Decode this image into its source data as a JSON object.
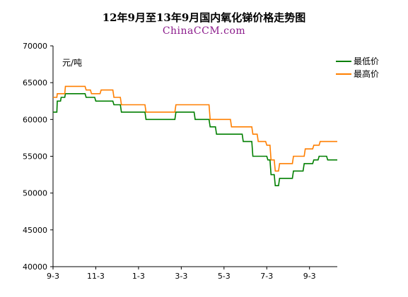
{
  "chart_data": {
    "type": "line",
    "title": "12年9月至13年9月国内氧化锑价格走势图",
    "subtitle": "ChinaCCM.com",
    "unit_label": "元/吨",
    "ylim": [
      40000,
      70000
    ],
    "y_ticks": [
      40000,
      45000,
      50000,
      55000,
      60000,
      65000,
      70000
    ],
    "x_tick_labels": [
      "9-3",
      "11-3",
      "1-3",
      "3-3",
      "5-3",
      "7-3",
      "9-3"
    ],
    "x_tick_positions": [
      0,
      2,
      4,
      6,
      8,
      10,
      12
    ],
    "xlim": [
      0,
      13.3
    ],
    "grid": false,
    "legend_position": "top-right",
    "series": [
      {
        "name": "最低价",
        "color": "#007f00",
        "points": [
          [
            0.0,
            61000
          ],
          [
            0.18,
            61000
          ],
          [
            0.2,
            62500
          ],
          [
            0.35,
            62500
          ],
          [
            0.38,
            63000
          ],
          [
            0.55,
            63000
          ],
          [
            0.58,
            63500
          ],
          [
            1.5,
            63500
          ],
          [
            1.55,
            63000
          ],
          [
            1.95,
            63000
          ],
          [
            2.0,
            62500
          ],
          [
            2.8,
            62500
          ],
          [
            2.85,
            62000
          ],
          [
            3.15,
            62000
          ],
          [
            3.2,
            61000
          ],
          [
            4.3,
            61000
          ],
          [
            4.35,
            60000
          ],
          [
            5.7,
            60000
          ],
          [
            5.75,
            61000
          ],
          [
            6.6,
            61000
          ],
          [
            6.65,
            60000
          ],
          [
            7.3,
            60000
          ],
          [
            7.35,
            59000
          ],
          [
            7.6,
            59000
          ],
          [
            7.65,
            58000
          ],
          [
            8.85,
            58000
          ],
          [
            8.9,
            57000
          ],
          [
            9.3,
            57000
          ],
          [
            9.35,
            55000
          ],
          [
            10.0,
            55000
          ],
          [
            10.05,
            54500
          ],
          [
            10.15,
            54500
          ],
          [
            10.2,
            52500
          ],
          [
            10.35,
            52500
          ],
          [
            10.4,
            51000
          ],
          [
            10.55,
            51000
          ],
          [
            10.6,
            52000
          ],
          [
            11.2,
            52000
          ],
          [
            11.25,
            53000
          ],
          [
            11.7,
            53000
          ],
          [
            11.75,
            54000
          ],
          [
            12.15,
            54000
          ],
          [
            12.2,
            54500
          ],
          [
            12.4,
            54500
          ],
          [
            12.45,
            55000
          ],
          [
            12.8,
            55000
          ],
          [
            12.85,
            54500
          ],
          [
            13.3,
            54500
          ]
        ]
      },
      {
        "name": "最高价",
        "color": "#ff7f00",
        "points": [
          [
            0.0,
            63000
          ],
          [
            0.18,
            63000
          ],
          [
            0.2,
            63500
          ],
          [
            0.55,
            63500
          ],
          [
            0.58,
            64500
          ],
          [
            1.5,
            64500
          ],
          [
            1.55,
            64000
          ],
          [
            1.75,
            64000
          ],
          [
            1.8,
            63500
          ],
          [
            2.2,
            63500
          ],
          [
            2.25,
            64000
          ],
          [
            2.8,
            64000
          ],
          [
            2.85,
            63000
          ],
          [
            3.15,
            63000
          ],
          [
            3.2,
            62000
          ],
          [
            4.3,
            62000
          ],
          [
            4.35,
            61000
          ],
          [
            5.7,
            61000
          ],
          [
            5.75,
            62000
          ],
          [
            7.3,
            62000
          ],
          [
            7.35,
            60000
          ],
          [
            8.3,
            60000
          ],
          [
            8.35,
            59000
          ],
          [
            9.3,
            59000
          ],
          [
            9.35,
            58000
          ],
          [
            9.55,
            58000
          ],
          [
            9.6,
            57000
          ],
          [
            9.95,
            57000
          ],
          [
            10.0,
            56500
          ],
          [
            10.15,
            56500
          ],
          [
            10.2,
            54500
          ],
          [
            10.35,
            54500
          ],
          [
            10.4,
            53000
          ],
          [
            10.55,
            53000
          ],
          [
            10.6,
            54000
          ],
          [
            11.2,
            54000
          ],
          [
            11.25,
            55000
          ],
          [
            11.75,
            55000
          ],
          [
            11.8,
            56000
          ],
          [
            12.15,
            56000
          ],
          [
            12.2,
            56500
          ],
          [
            12.45,
            56500
          ],
          [
            12.5,
            57000
          ],
          [
            13.3,
            57000
          ]
        ]
      }
    ]
  }
}
